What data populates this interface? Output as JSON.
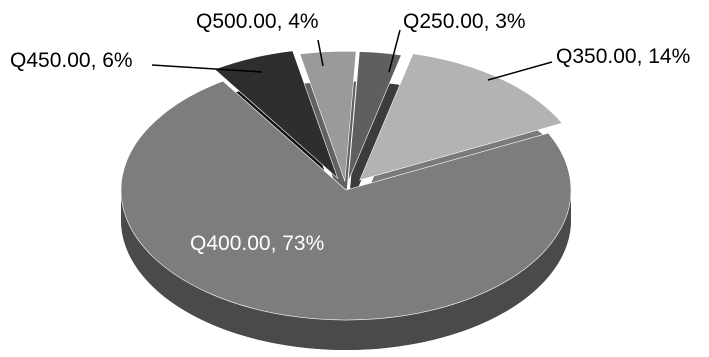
{
  "chart_data": {
    "type": "pie",
    "style": "3d-exploded",
    "legend": "none",
    "slices": [
      {
        "category": "Q250.00",
        "percent": 3,
        "label": "Q250.00, 3%",
        "color": "#5f5f5f",
        "side": "#3c3c3c"
      },
      {
        "category": "Q350.00",
        "percent": 14,
        "label": "Q350.00, 14%",
        "color": "#b3b3b3",
        "side": "#7a7a7a"
      },
      {
        "category": "Q400.00",
        "percent": 73,
        "label": "Q400.00, 73%",
        "color": "#7d7d7d",
        "side": "#4a4a4a"
      },
      {
        "category": "Q450.00",
        "percent": 6,
        "label": "Q450.00, 6%",
        "color": "#2e2e2e",
        "side": "#151515"
      },
      {
        "category": "Q500.00",
        "percent": 4,
        "label": "Q500.00, 4%",
        "color": "#9a9a9a",
        "side": "#626262"
      }
    ]
  }
}
